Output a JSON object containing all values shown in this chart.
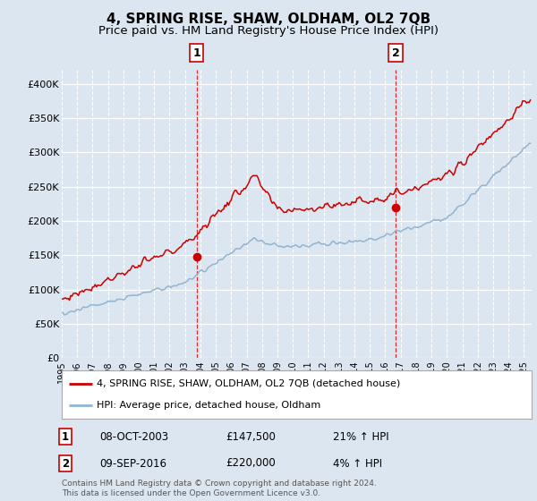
{
  "title": "4, SPRING RISE, SHAW, OLDHAM, OL2 7QB",
  "subtitle": "Price paid vs. HM Land Registry's House Price Index (HPI)",
  "title_fontsize": 11,
  "subtitle_fontsize": 9.5,
  "bg_color": "#dce6f1",
  "line_color_red": "#cc0000",
  "line_color_blue": "#92b4d0",
  "ylim": [
    0,
    420000
  ],
  "yticks": [
    0,
    50000,
    100000,
    150000,
    200000,
    250000,
    300000,
    350000,
    400000
  ],
  "ytick_labels": [
    "£0",
    "£50K",
    "£100K",
    "£150K",
    "£200K",
    "£250K",
    "£300K",
    "£350K",
    "£400K"
  ],
  "xlim_start": 1995.0,
  "xlim_end": 2025.5,
  "xlabel_years": [
    1995,
    1996,
    1997,
    1998,
    1999,
    2000,
    2001,
    2002,
    2003,
    2004,
    2005,
    2006,
    2007,
    2008,
    2009,
    2010,
    2011,
    2012,
    2013,
    2014,
    2015,
    2016,
    2017,
    2018,
    2019,
    2020,
    2021,
    2022,
    2023,
    2024,
    2025
  ],
  "legend_label_red": "4, SPRING RISE, SHAW, OLDHAM, OL2 7QB (detached house)",
  "legend_label_blue": "HPI: Average price, detached house, Oldham",
  "sale1_x": 2003.75,
  "sale1_y": 147500,
  "sale2_x": 2016.67,
  "sale2_y": 220000,
  "annotation1_num": "1",
  "annotation1_date": "08-OCT-2003",
  "annotation1_price": "£147,500",
  "annotation1_hpi": "21% ↑ HPI",
  "annotation2_num": "2",
  "annotation2_date": "09-SEP-2016",
  "annotation2_price": "£220,000",
  "annotation2_hpi": "4% ↑ HPI",
  "footer": "Contains HM Land Registry data © Crown copyright and database right 2024.\nThis data is licensed under the Open Government Licence v3.0."
}
